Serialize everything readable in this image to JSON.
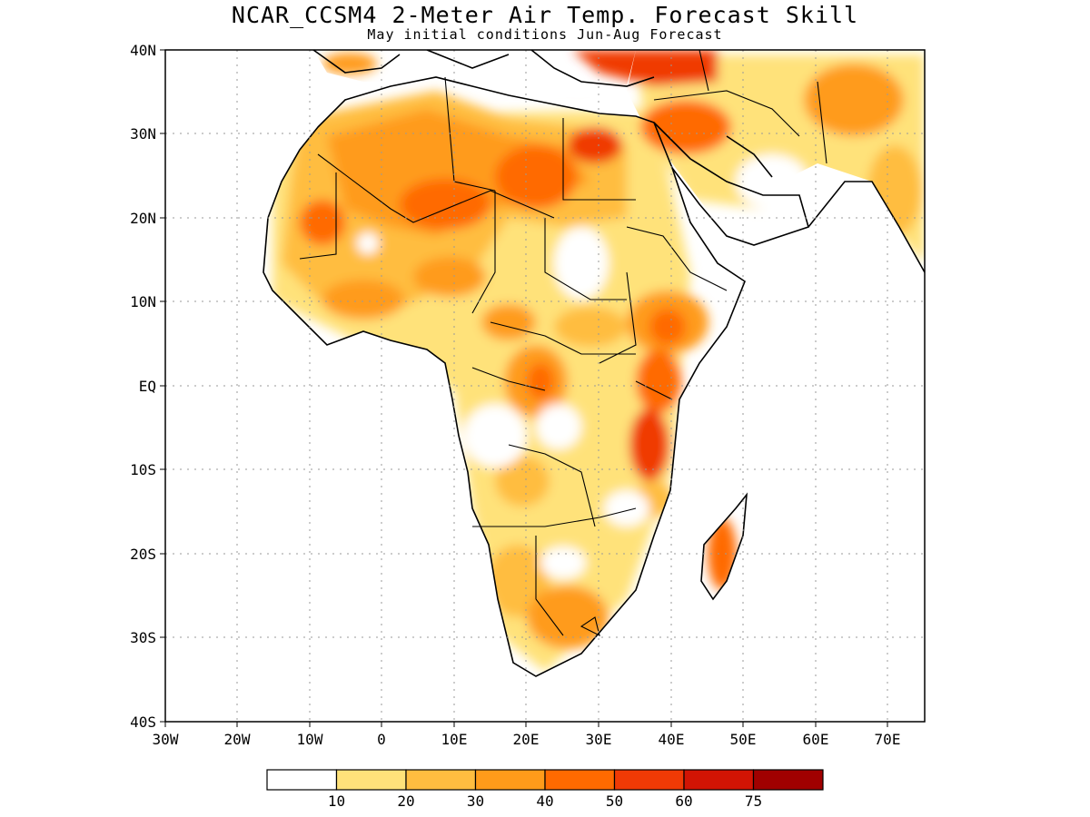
{
  "title": "NCAR_CCSM4 2-Meter Air Temp. Forecast Skill",
  "subtitle": "May initial conditions  Jun-Aug Forecast",
  "axes": {
    "lat_labels": [
      "40N",
      "30N",
      "20N",
      "10N",
      "EQ",
      "10S",
      "20S",
      "30S",
      "40S"
    ],
    "lon_labels": [
      "30W",
      "20W",
      "10W",
      "0",
      "10E",
      "20E",
      "30E",
      "40E",
      "50E",
      "60E",
      "70E"
    ]
  },
  "legend": {
    "tick_labels": [
      "10",
      "20",
      "30",
      "40",
      "50",
      "60",
      "75"
    ],
    "colors": [
      "#ffffff",
      "#ffe27a",
      "#ffbd40",
      "#ff9b1a",
      "#ff6a00",
      "#f03a05",
      "#d21404",
      "#a00000"
    ]
  },
  "colors": {
    "land_outline": "#000000",
    "grid": "#999999"
  }
}
